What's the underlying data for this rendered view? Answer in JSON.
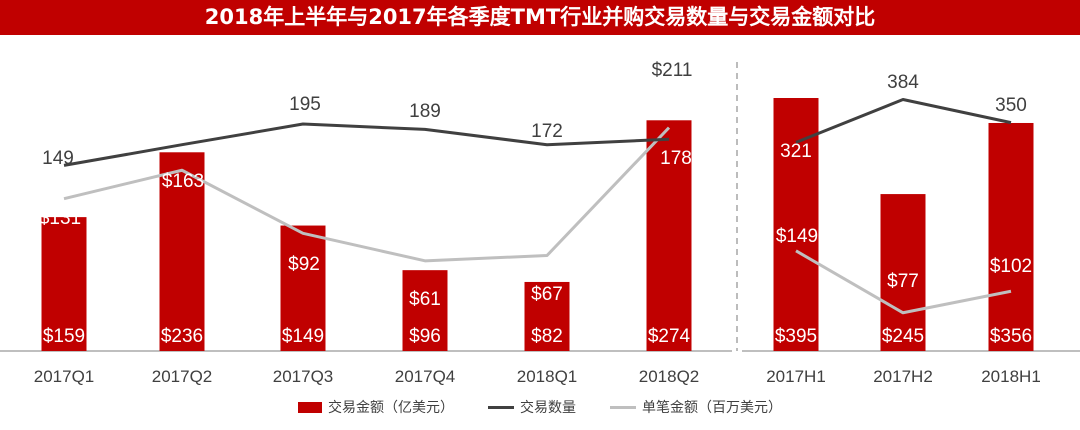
{
  "chart_data": {
    "type": "bar",
    "title": "2018年上半年与2017年各季度TMT行业并购交易数量与交易金额对比",
    "categories": [
      "2017Q1",
      "2017Q2",
      "2017Q3",
      "2017Q4",
      "2018Q1",
      "2018Q2",
      "2017H1",
      "2017H2",
      "2018H1"
    ],
    "groups": [
      {
        "categories": [
          "2017Q1",
          "2017Q2",
          "2017Q3",
          "2017Q4",
          "2018Q1",
          "2018Q2"
        ]
      },
      {
        "categories": [
          "2017H1",
          "2017H2",
          "2018H1"
        ]
      }
    ],
    "series": [
      {
        "name": "交易金额（亿美元）",
        "kind": "bar",
        "color": "#c00000",
        "values": [
          159,
          236,
          149,
          96,
          82,
          274,
          395,
          245,
          356
        ],
        "labels": [
          "$159",
          "$236",
          "$149",
          "$96",
          "$82",
          "$274",
          "$395",
          "$245",
          "$356"
        ]
      },
      {
        "name": "交易数量",
        "kind": "line",
        "color": "#404040",
        "values": [
          149,
          172,
          195,
          189,
          172,
          178,
          321,
          384,
          350
        ],
        "labels": [
          "149",
          "172",
          "195",
          "189",
          "172",
          "178",
          "321",
          "384",
          "350"
        ]
      },
      {
        "name": "单笔金额（百万美元）",
        "kind": "line",
        "color": "#bfbfbf",
        "values": [
          131,
          163,
          92,
          61,
          67,
          211,
          149,
          77,
          102
        ],
        "labels": [
          "$131",
          "$163",
          "$92",
          "$61",
          "$67",
          "$211",
          "$149",
          "$77",
          "$102"
        ]
      }
    ],
    "grid": false,
    "legend": "bottom"
  }
}
